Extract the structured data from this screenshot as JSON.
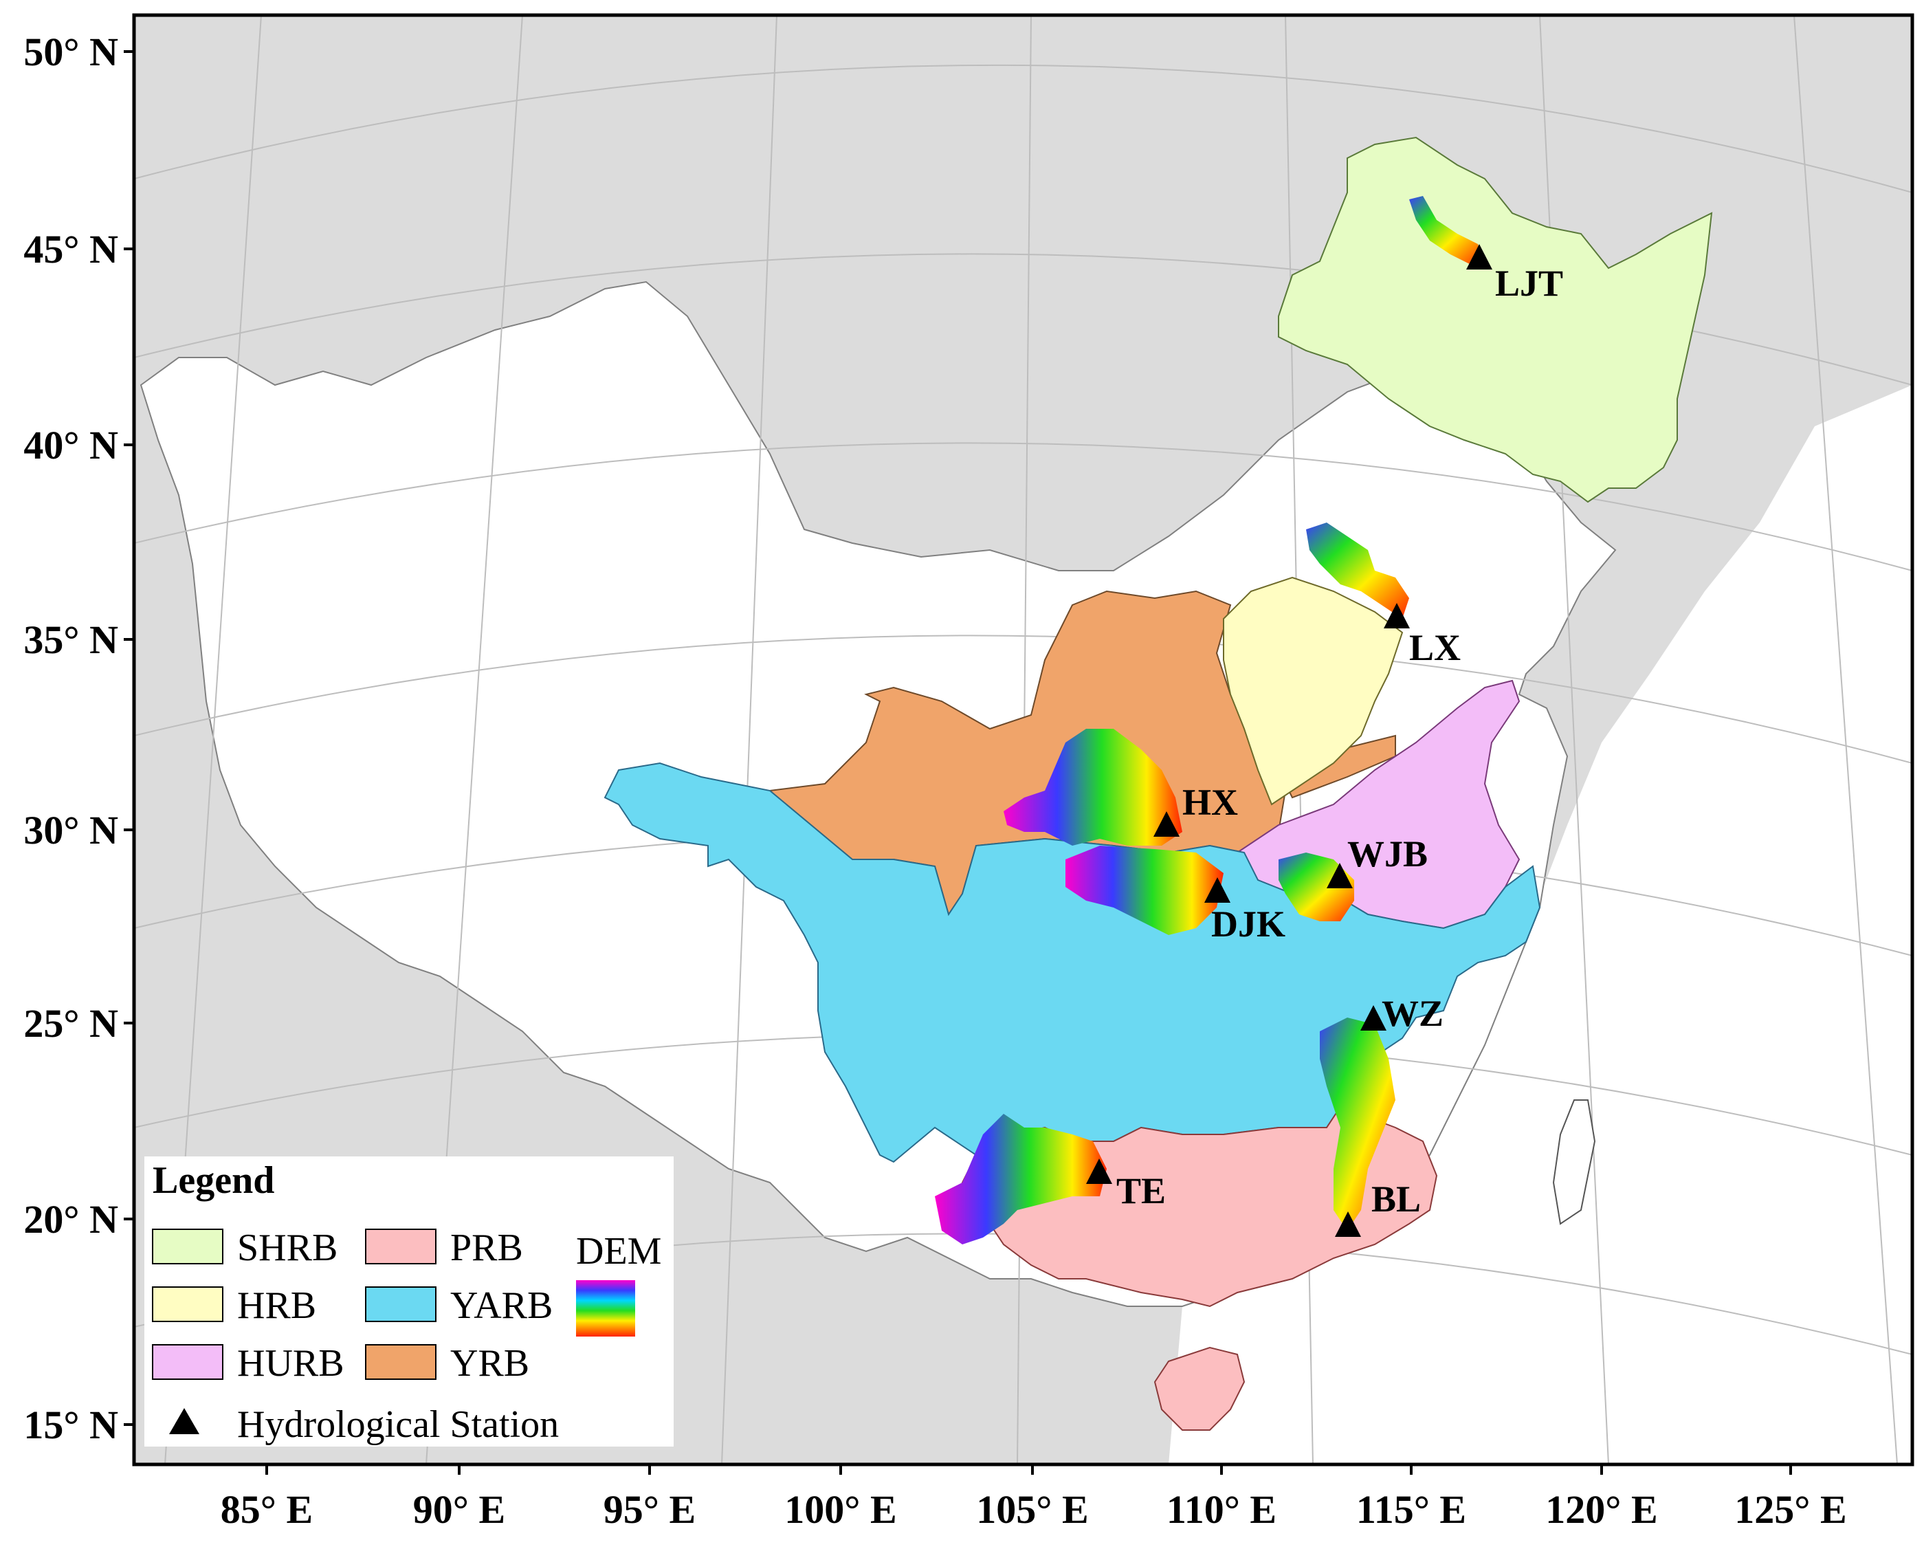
{
  "map": {
    "lat_ticks": [
      "50° N",
      "45° N",
      "40° N",
      "35° N",
      "30° N",
      "25° N",
      "20° N",
      "15° N"
    ],
    "lon_ticks": [
      "85° E",
      "90° E",
      "95° E",
      "100° E",
      "105° E",
      "110° E",
      "115° E",
      "120° E",
      "125° E"
    ]
  },
  "basins": [
    {
      "code": "SHRB",
      "color": "#E6FCC4"
    },
    {
      "code": "HRB",
      "color": "#FFFDC2"
    },
    {
      "code": "HURB",
      "color": "#F3BDF8"
    },
    {
      "code": "PRB",
      "color": "#FCBEC0"
    },
    {
      "code": "YARB",
      "color": "#6BD9F2"
    },
    {
      "code": "YRB",
      "color": "#F0A46A"
    }
  ],
  "stations": [
    "LJT",
    "LX",
    "HX",
    "WJB",
    "DJK",
    "WZ",
    "TE",
    "BL"
  ],
  "legend": {
    "title": "Legend",
    "dem_label": "DEM",
    "station_label": "Hydrological Station"
  },
  "colors": {
    "background_land": "#DCDCDC",
    "china": "#FFFFFF",
    "frame": "#000000"
  }
}
